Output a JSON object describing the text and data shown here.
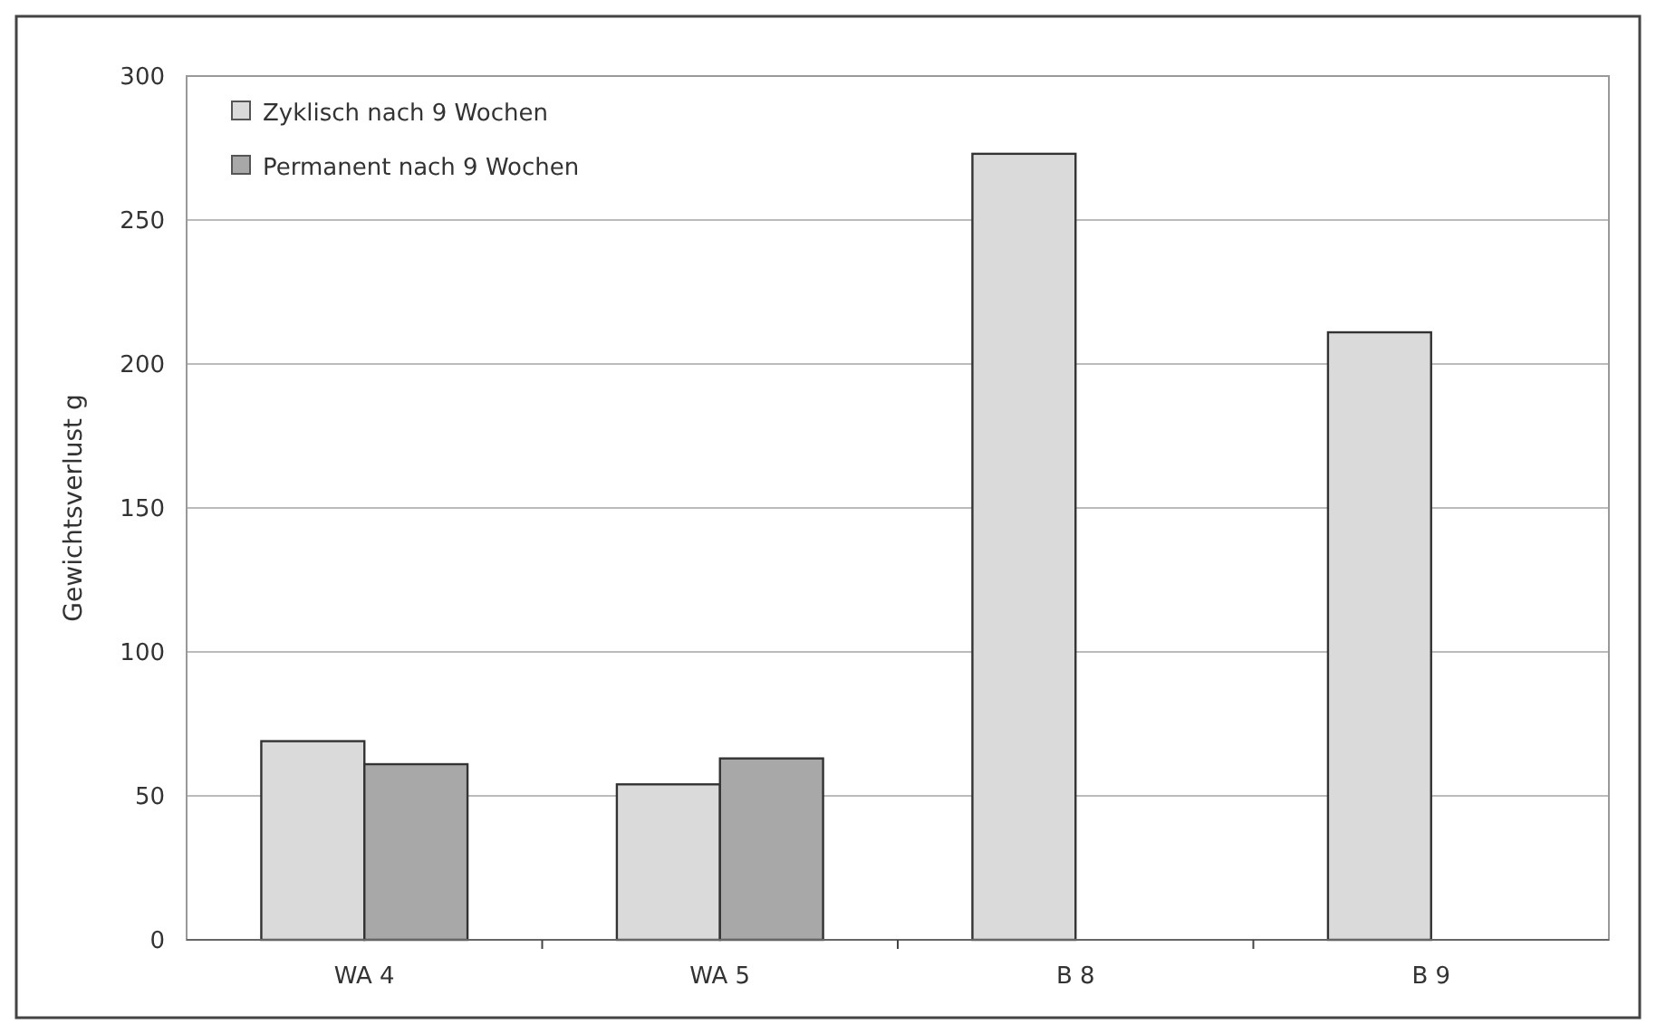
{
  "chart_data": {
    "type": "bar",
    "ylabel": "Gewichtsverlust g",
    "categories": [
      "WA 4",
      "WA 5",
      "B 8",
      "B 9"
    ],
    "series": [
      {
        "name": "Zyklisch nach 9 Wochen",
        "color": "#dadada",
        "values": [
          69,
          54,
          273,
          211
        ]
      },
      {
        "name": "Permanent nach 9 Wochen",
        "color": "#a8a8a8",
        "values": [
          61,
          63,
          null,
          null
        ]
      }
    ],
    "ylim": [
      0,
      300
    ],
    "yticks": [
      0,
      50,
      100,
      150,
      200,
      250,
      300
    ],
    "grid": "y",
    "legend": "top left"
  }
}
